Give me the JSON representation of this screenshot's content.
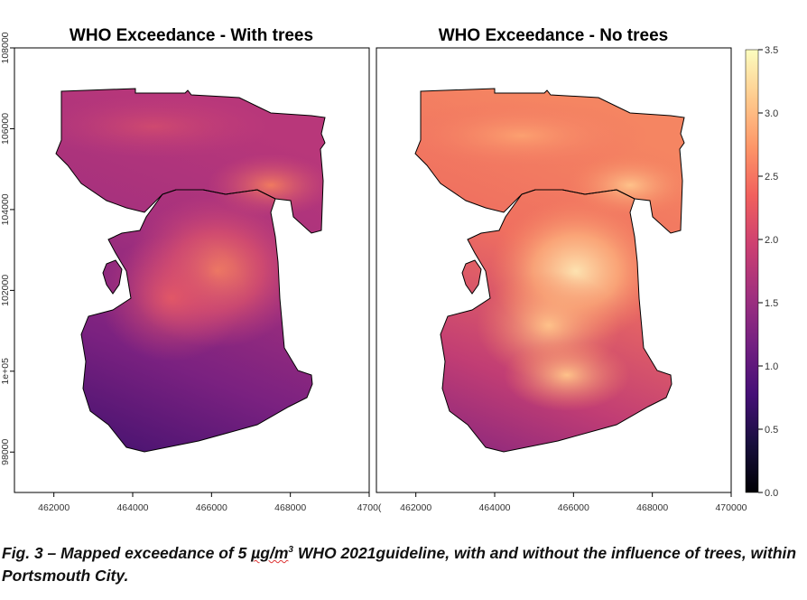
{
  "chart_data": [
    {
      "type": "heatmap",
      "title": "WHO Exceedance - With trees",
      "x_ticks": [
        "462000",
        "464000",
        "466000",
        "468000",
        "4700("
      ],
      "y_ticks": [
        "98000",
        "1e+05",
        "102000",
        "104000",
        "106000",
        "108000"
      ],
      "xlim": [
        461000,
        470000
      ],
      "ylim": [
        97000,
        108000
      ],
      "value_range": [
        0.5,
        2.6
      ],
      "hotspots": [
        {
          "x": 466000,
          "y": 102300,
          "value": 2.6
        },
        {
          "x": 465300,
          "y": 101800,
          "value": 2.3
        },
        {
          "x": 467400,
          "y": 104600,
          "value": 2.2
        }
      ]
    },
    {
      "type": "heatmap",
      "title": "WHO Exceedance - No trees",
      "x_ticks": [
        "462000",
        "464000",
        "466000",
        "468000",
        "470000"
      ],
      "xlim": [
        461000,
        470000
      ],
      "ylim": [
        97000,
        108000
      ],
      "value_range": [
        1.3,
        3.3
      ],
      "hotspots": [
        {
          "x": 466500,
          "y": 102200,
          "value": 3.3
        },
        {
          "x": 465500,
          "y": 101000,
          "value": 3.0
        },
        {
          "x": 467200,
          "y": 104500,
          "value": 2.6
        }
      ]
    }
  ],
  "colorbar": {
    "ticks": [
      "0.0",
      "0.5",
      "1.0",
      "1.5",
      "2.0",
      "2.5",
      "3.0",
      "3.5"
    ],
    "tick_values": [
      0,
      0.5,
      1.0,
      1.5,
      2.0,
      2.5,
      3.0,
      3.5
    ],
    "min": 0,
    "max": 3.5
  },
  "colors": [
    "#000004",
    "#180f3d",
    "#440f76",
    "#721f81",
    "#9e2f7f",
    "#cd4071",
    "#f1605d",
    "#fd9668",
    "#feca8d",
    "#fcfdbf"
  ],
  "caption": {
    "part1": "Fig. 3 – Mapped exceedance of 5 ",
    "unit": "µg/m",
    "sup": "3",
    "part2": " WHO 2021guideline, with and without the influence of trees, within Portsmouth City."
  }
}
